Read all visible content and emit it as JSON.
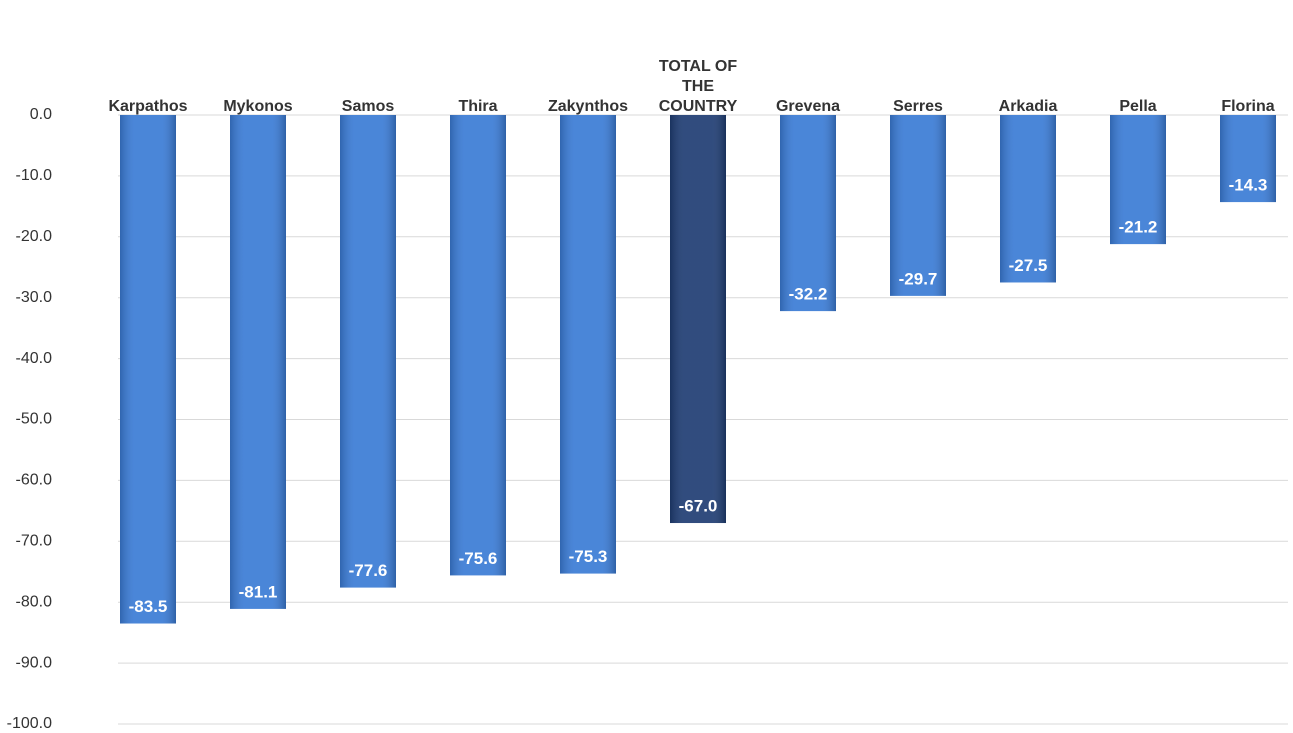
{
  "chart_data": {
    "type": "bar",
    "categories": [
      "Karpathos",
      "Mykonos",
      "Samos",
      "Thira",
      "Zakynthos",
      "TOTAL OF THE COUNTRY",
      "Grevena",
      "Serres",
      "Arkadia",
      "Pella",
      "Florina"
    ],
    "values": [
      -83.5,
      -81.1,
      -77.6,
      -75.6,
      -75.3,
      -67.0,
      -32.2,
      -29.7,
      -27.5,
      -21.2,
      -14.3
    ],
    "value_labels": [
      "-83.5",
      "-81.1",
      "-77.6",
      "-75.6",
      "-75.3",
      "-67.0",
      "-32.2",
      "-29.7",
      "-27.5",
      "-21.2",
      "-14.3"
    ],
    "colors": [
      "#3a7bd5",
      "#3a7bd5",
      "#3a7bd5",
      "#3a7bd5",
      "#3a7bd5",
      "#1f3d73",
      "#3a7bd5",
      "#3a7bd5",
      "#3a7bd5",
      "#3a7bd5",
      "#3a7bd5"
    ],
    "ylim": [
      -100,
      0
    ],
    "yticks": [
      {
        "value": 0,
        "label": "0.0"
      },
      {
        "value": -10,
        "label": "-10.0"
      },
      {
        "value": -20,
        "label": "-20.0"
      },
      {
        "value": -30,
        "label": "-30.0"
      },
      {
        "value": -40,
        "label": "-40.0"
      },
      {
        "value": -50,
        "label": "-50.0"
      },
      {
        "value": -60,
        "label": "-60.0"
      },
      {
        "value": -70,
        "label": "-70.0"
      },
      {
        "value": -80,
        "label": "-80.0"
      },
      {
        "value": -90,
        "label": "-90.0"
      },
      {
        "value": -100,
        "label": "-100.0"
      }
    ],
    "grid": true
  }
}
